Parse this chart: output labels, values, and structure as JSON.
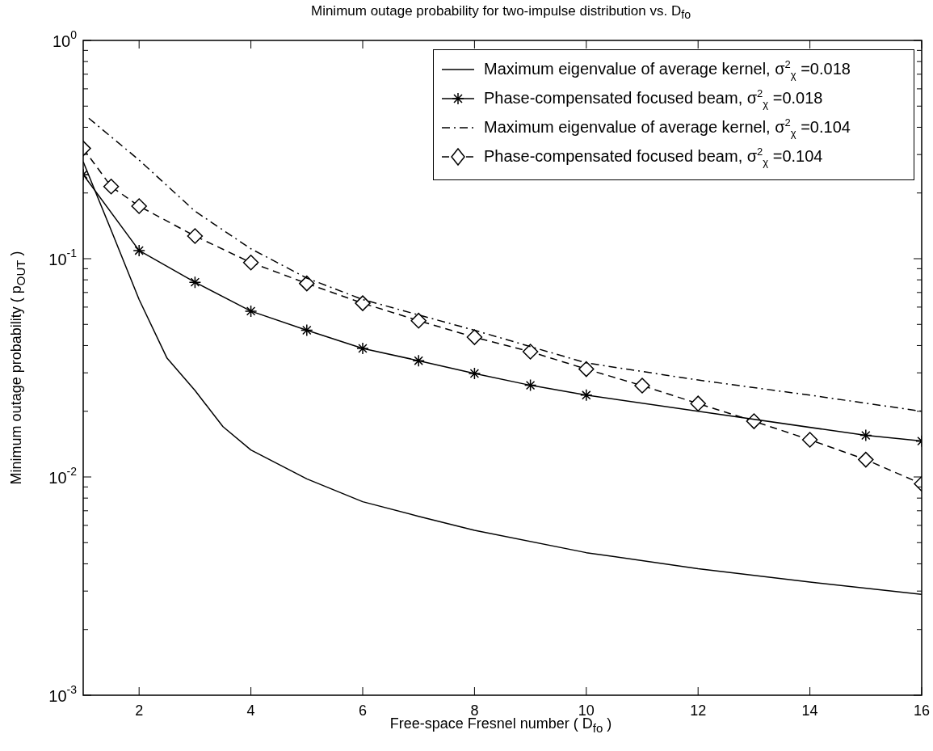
{
  "chart_data": {
    "type": "line",
    "title": "Minimum outage probability for two-impulse distribution vs.  D$_{fo}$",
    "xlabel": "Free-space Fresnel number ( D$_{fo}$ )",
    "ylabel": "Minimum outage probability ( p$_{OUT}$ )",
    "log": "y",
    "xlim": [
      1,
      16
    ],
    "xticks": [
      2,
      4,
      6,
      8,
      10,
      12,
      14,
      16
    ],
    "ylim": [
      0.001,
      1
    ],
    "yticks": [
      {
        "value": 0.001,
        "label": "10$^{-3}$"
      },
      {
        "value": 0.002,
        "label": null
      },
      {
        "value": 0.003,
        "label": null
      },
      {
        "value": 0.004,
        "label": null
      },
      {
        "value": 0.005,
        "label": null
      },
      {
        "value": 0.006,
        "label": null
      },
      {
        "value": 0.007,
        "label": null
      },
      {
        "value": 0.008,
        "label": null
      },
      {
        "value": 0.009,
        "label": null
      },
      {
        "value": 0.01,
        "label": "10$^{-2}$"
      },
      {
        "value": 0.02,
        "label": null
      },
      {
        "value": 0.03,
        "label": null
      },
      {
        "value": 0.04,
        "label": null
      },
      {
        "value": 0.05,
        "label": null
      },
      {
        "value": 0.06,
        "label": null
      },
      {
        "value": 0.07,
        "label": null
      },
      {
        "value": 0.08,
        "label": null
      },
      {
        "value": 0.09,
        "label": null
      },
      {
        "value": 0.1,
        "label": "10$^{-1}$"
      },
      {
        "value": 0.2,
        "label": null
      },
      {
        "value": 0.3,
        "label": null
      },
      {
        "value": 0.4,
        "label": null
      },
      {
        "value": 0.5,
        "label": null
      },
      {
        "value": 0.6,
        "label": null
      },
      {
        "value": 0.7,
        "label": null
      },
      {
        "value": 0.8,
        "label": null
      },
      {
        "value": 0.9,
        "label": null
      },
      {
        "value": 1,
        "label": "10$^{0}$"
      }
    ],
    "grid": false,
    "legend": "top right",
    "series": [
      {
        "name": "Maximum eigenvalue of average kernel, σ$^{2}$$_{χ}$ =0.018",
        "color": "#000000",
        "marker": "none",
        "line_style": "solid",
        "x": [
          1,
          1.5,
          2,
          2.5,
          3,
          3.5,
          4,
          5,
          6,
          7,
          8,
          10,
          12,
          14,
          16
        ],
        "values": [
          0.278,
          0.135,
          0.065,
          0.035,
          0.0249,
          0.017,
          0.0133,
          0.0098,
          0.0077,
          0.0066,
          0.0057,
          0.0045,
          0.0038,
          0.0033,
          0.0029
        ]
      },
      {
        "name": "Phase-compensated focused beam, σ$^{2}$$_{χ}$ =0.018",
        "color": "#000000",
        "marker": "cross",
        "line_style": "solid",
        "x": [
          1,
          2,
          3,
          4,
          5,
          6,
          7,
          8,
          9,
          10,
          15,
          16
        ],
        "values": [
          0.243,
          0.109,
          0.078,
          0.0575,
          0.047,
          0.0388,
          0.0341,
          0.0298,
          0.0263,
          0.0237,
          0.0155,
          0.0146
        ]
      },
      {
        "name": "Maximum eigenvalue of average kernel, σ$^{2}$$_{χ}$ =0.104",
        "color": "#000000",
        "marker": "none",
        "line_style": "dashdot",
        "x": [
          1.1,
          2,
          3,
          4,
          5,
          6,
          8,
          10,
          12,
          14,
          16
        ],
        "values": [
          0.44,
          0.283,
          0.165,
          0.111,
          0.0815,
          0.065,
          0.047,
          0.0333,
          0.0278,
          0.0237,
          0.02
        ]
      },
      {
        "name": "Phase-compensated focused beam, σ$^{2}$$_{χ}$ =0.104",
        "color": "#000000",
        "marker": "diamond",
        "line_style": "dashed",
        "x": [
          1,
          1.5,
          2,
          3,
          4,
          5,
          6,
          7,
          8,
          9,
          10,
          11,
          12,
          13,
          14,
          15,
          16
        ],
        "values": [
          0.32,
          0.214,
          0.174,
          0.127,
          0.096,
          0.077,
          0.0625,
          0.052,
          0.0437,
          0.0375,
          0.0312,
          0.0262,
          0.0217,
          0.018,
          0.0148,
          0.012,
          0.0093
        ]
      }
    ]
  }
}
